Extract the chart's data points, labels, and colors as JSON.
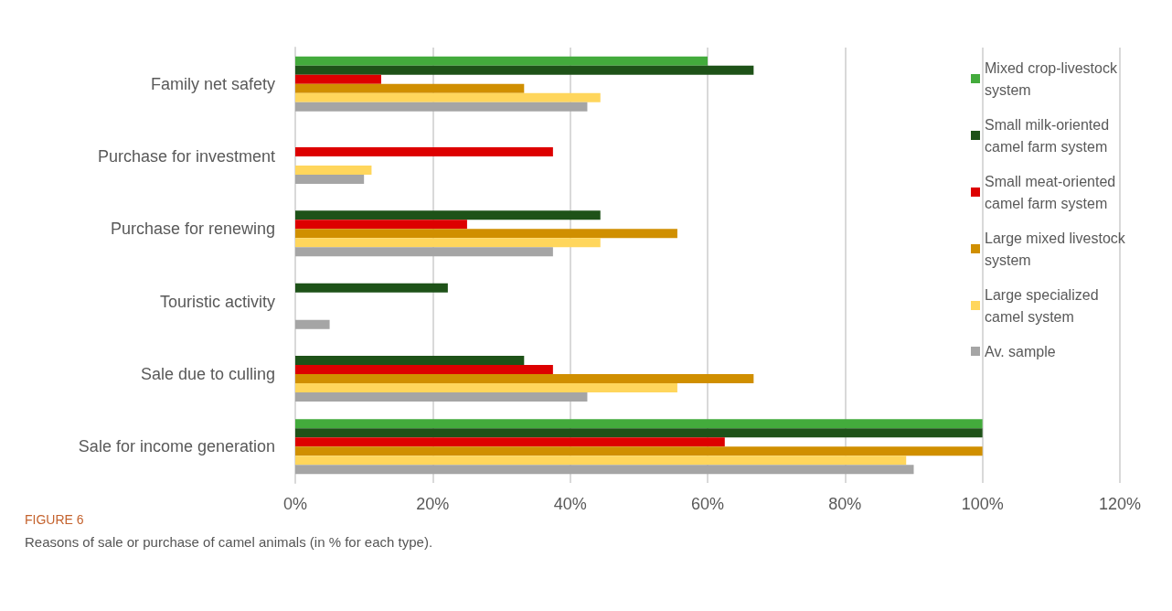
{
  "chart_data": {
    "type": "bar",
    "orientation": "horizontal",
    "title": "FIGURE 6",
    "subtitle": "Reasons of sale or purchase of camel animals (in % for each type).",
    "categories": [
      "Family net safety",
      "Purchase for investment",
      "Purchase for renewing",
      "Touristic activity",
      "Sale due to culling",
      "Sale for income generation"
    ],
    "series": [
      {
        "name": "Mixed crop-livestock system",
        "color": "#43ab3c",
        "values": [
          60,
          null,
          null,
          null,
          null,
          100
        ]
      },
      {
        "name": "Small milk-oriented camel farm system",
        "color": "#1e5218",
        "values": [
          66.7,
          null,
          44.4,
          22.2,
          33.3,
          100
        ]
      },
      {
        "name": "Small meat-oriented camel farm system",
        "color": "#dd0000",
        "values": [
          12.5,
          37.5,
          25,
          null,
          37.5,
          62.5
        ]
      },
      {
        "name": "Large mixed livestock system",
        "color": "#d08f00",
        "values": [
          33.3,
          null,
          55.6,
          null,
          66.7,
          100
        ]
      },
      {
        "name": "Large specialized camel system",
        "color": "#ffd65c",
        "values": [
          44.4,
          11.1,
          44.4,
          null,
          55.6,
          88.9
        ]
      },
      {
        "name": "Av. sample",
        "color": "#a5a5a5",
        "values": [
          42.5,
          10,
          37.5,
          5,
          42.5,
          90
        ]
      }
    ],
    "xlim": [
      0,
      120
    ],
    "xticks": [
      {
        "value": 0,
        "label": "0%"
      },
      {
        "value": 20,
        "label": "20%"
      },
      {
        "value": 40,
        "label": "40%"
      },
      {
        "value": 60,
        "label": "60%"
      },
      {
        "value": 80,
        "label": "80%"
      },
      {
        "value": 100,
        "label": "100%"
      },
      {
        "value": 120,
        "label": "120%"
      }
    ],
    "grid": "x",
    "legend": "right"
  }
}
